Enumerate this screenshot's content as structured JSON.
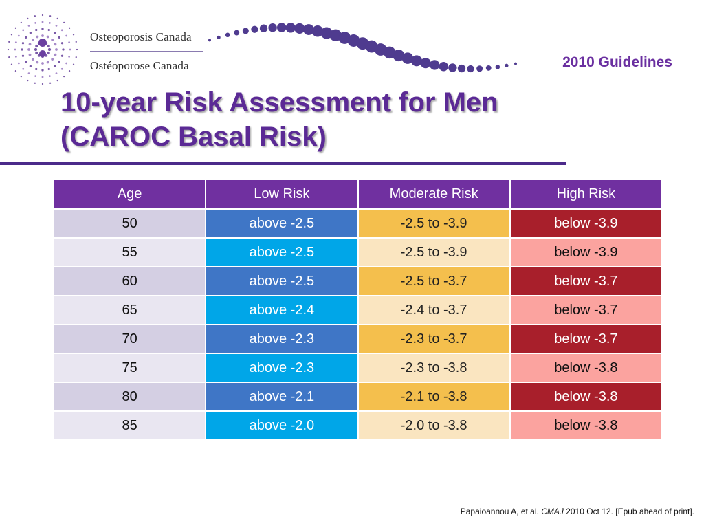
{
  "logo": {
    "name_en": "Osteoporosis Canada",
    "name_fr": "Ostéoporose Canada"
  },
  "guidelines_tag": "2010 Guidelines",
  "title": {
    "line1": "10-year Risk Assessment for Men",
    "line2": "(CAROC Basal Risk)"
  },
  "table": {
    "headers": [
      "Age",
      "Low Risk",
      "Moderate Risk",
      "High Risk"
    ],
    "rows": [
      {
        "age": "50",
        "low": "above -2.5",
        "moderate": "-2.5 to -3.9",
        "high": "below -3.9"
      },
      {
        "age": "55",
        "low": "above -2.5",
        "moderate": "-2.5 to -3.9",
        "high": "below -3.9"
      },
      {
        "age": "60",
        "low": "above -2.5",
        "moderate": "-2.5 to -3.7",
        "high": "below -3.7"
      },
      {
        "age": "65",
        "low": "above -2.4",
        "moderate": "-2.4 to -3.7",
        "high": "below -3.7"
      },
      {
        "age": "70",
        "low": "above -2.3",
        "moderate": "-2.3 to -3.7",
        "high": "below -3.7"
      },
      {
        "age": "75",
        "low": "above -2.3",
        "moderate": "-2.3 to -3.8",
        "high": "below -3.8"
      },
      {
        "age": "80",
        "low": "above -2.1",
        "moderate": "-2.1 to -3.8",
        "high": "below -3.8"
      },
      {
        "age": "85",
        "low": "above -2.0",
        "moderate": "-2.0 to -3.8",
        "high": "below -3.8"
      }
    ]
  },
  "citation": {
    "authors": "Papaioannou A, et al.",
    "journal": "CMAJ",
    "details": "2010 Oct 12. [Epub ahead of print]."
  },
  "colors": {
    "header": "#7030a0",
    "low_dark": "#3f76c6",
    "low_light": "#00a6e8",
    "moderate_dark": "#f4bf4d",
    "moderate_light": "#fae5c0",
    "high_dark": "#a81f2b",
    "high_light": "#fba39f",
    "title": "#5b2a95"
  }
}
